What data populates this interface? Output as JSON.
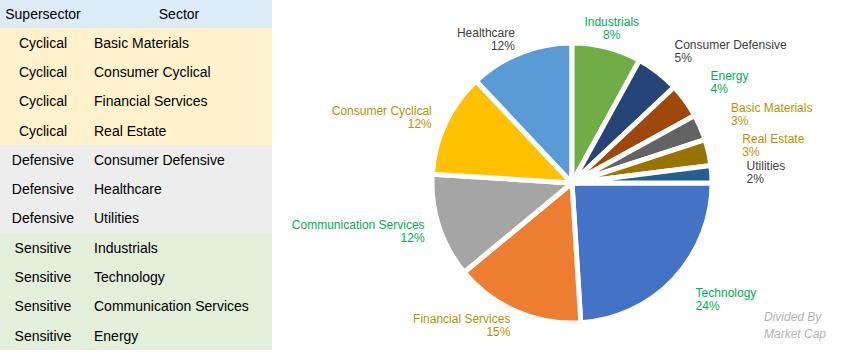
{
  "table": {
    "header": [
      "Supersector",
      "Sector"
    ],
    "rows": [
      [
        "Cyclical",
        "Basic Materials"
      ],
      [
        "Cyclical",
        "Consumer Cyclical"
      ],
      [
        "Cyclical",
        "Financial Services"
      ],
      [
        "Cyclical",
        "Real Estate"
      ],
      [
        "Defensive",
        "Consumer Defensive"
      ],
      [
        "Defensive",
        "Healthcare"
      ],
      [
        "Defensive",
        "Utilities"
      ],
      [
        "Sensitive",
        "Industrials"
      ],
      [
        "Sensitive",
        "Technology"
      ],
      [
        "Sensitive",
        "Communication Services"
      ],
      [
        "Sensitive",
        "Energy"
      ]
    ]
  },
  "chart_data": {
    "type": "pie",
    "categories": [
      "Technology",
      "Financial Services",
      "Communication Services",
      "Consumer Cyclical",
      "Healthcare",
      "Industrials",
      "Consumer Defensive",
      "Energy",
      "Basic Materials",
      "Real Estate",
      "Utilities"
    ],
    "values": [
      24,
      15,
      12,
      12,
      12,
      8,
      5,
      4,
      3,
      3,
      2
    ],
    "value_labels": [
      "24%",
      "15%",
      "12%",
      "12%",
      "12%",
      "8%",
      "5%",
      "4%",
      "3%",
      "3%",
      "2%"
    ],
    "colors": [
      "#4472c4",
      "#ed7d31",
      "#a5a5a5",
      "#ffc000",
      "#5b9bd5",
      "#70ad47",
      "#264478",
      "#9e480e",
      "#636363",
      "#997300",
      "#255e91"
    ],
    "data_labels": true,
    "annotation": [
      "Divided By",
      "Market Cap"
    ]
  }
}
